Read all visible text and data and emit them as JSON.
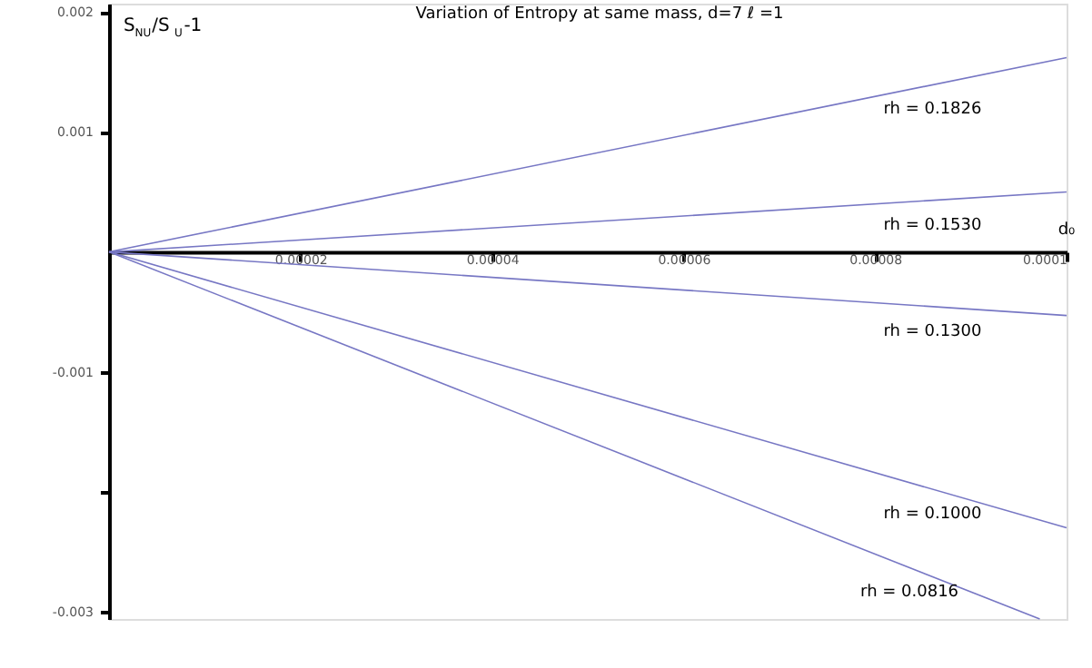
{
  "chart_data": {
    "type": "line",
    "title": "Variation of Entropy at same mass, d=7  ℓ =1",
    "xlabel": "d₀",
    "ylabel": "S$_{NU}$/S$_{U}$-1",
    "series": [
      {
        "name": "rh = 0.1826",
        "color": "#7777c4",
        "x": [
          0,
          0.0001
        ],
        "values": [
          0,
          0.00162
        ]
      },
      {
        "name": "rh = 0.1530",
        "color": "#7777c4",
        "x": [
          0,
          0.0001
        ],
        "values": [
          0,
          0.0005
        ]
      },
      {
        "name": "rh = 0.1300",
        "color": "#7777c4",
        "x": [
          0,
          0.0001
        ],
        "values": [
          0,
          -0.00053
        ]
      },
      {
        "name": "rh = 0.1000",
        "color": "#7777c4",
        "x": [
          0,
          0.0001
        ],
        "values": [
          0,
          -0.0023
        ]
      },
      {
        "name": "rh = 0.0816",
        "color": "#7777c4",
        "x": [
          0,
          9.72e-05
        ],
        "values": [
          0,
          -0.00306
        ]
      }
    ],
    "xlim": [
      0,
      0.0001
    ],
    "ylim": [
      -0.00306,
      0.00207
    ],
    "xticks": [
      {
        "value": 2e-05,
        "label": "0.00002"
      },
      {
        "value": 4e-05,
        "label": "0.00004"
      },
      {
        "value": 6e-05,
        "label": "0.00006"
      },
      {
        "value": 8e-05,
        "label": "0.00008"
      },
      {
        "value": 0.0001,
        "label": "0.0001"
      }
    ],
    "yticks": [
      -0.003,
      {
        "value": -0.002,
        "label": null
      },
      -0.001,
      0.001,
      0.002
    ],
    "grid": false,
    "line_style": "solid",
    "marker": "none"
  }
}
